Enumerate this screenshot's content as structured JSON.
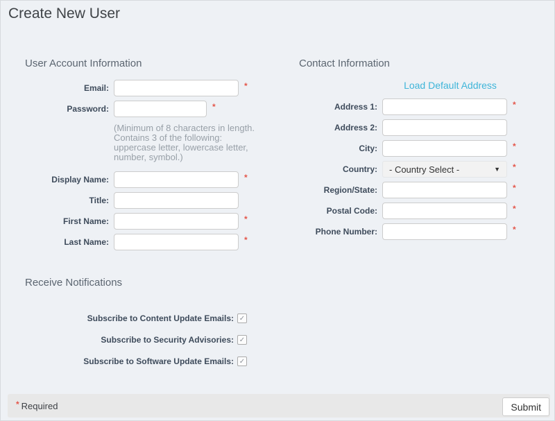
{
  "page": {
    "title": "Create New User"
  },
  "account": {
    "section_title": "User Account Information",
    "fields": [
      {
        "label": "Email:",
        "value": "",
        "required": true
      },
      {
        "label": "Password:",
        "value": "",
        "required": true,
        "hint": "(Minimum of 8 characters in length. Contains 3 of the following: uppercase letter, lowercase letter, number, symbol.)"
      },
      {
        "label": "Display Name:",
        "value": "",
        "required": true
      },
      {
        "label": "Title:",
        "value": "",
        "required": false
      },
      {
        "label": "First Name:",
        "value": "",
        "required": true
      },
      {
        "label": "Last Name:",
        "value": "",
        "required": true
      }
    ]
  },
  "contact": {
    "section_title": "Contact Information",
    "link_label": "Load Default Address",
    "fields": [
      {
        "label": "Address 1:",
        "value": "",
        "required": true
      },
      {
        "label": "Address 2:",
        "value": "",
        "required": false
      },
      {
        "label": "City:",
        "value": "",
        "required": true
      },
      {
        "label": "Country:",
        "value": "- Country Select -",
        "required": true,
        "type": "select"
      },
      {
        "label": "Region/State:",
        "value": "",
        "required": true
      },
      {
        "label": "Postal Code:",
        "value": "",
        "required": true
      },
      {
        "label": "Phone Number:",
        "value": "",
        "required": true
      }
    ]
  },
  "notifications": {
    "section_title": "Receive Notifications",
    "items": [
      {
        "label": "Subscribe to Content Update Emails:",
        "checked": true
      },
      {
        "label": "Subscribe to Security Advisories:",
        "checked": true
      },
      {
        "label": "Subscribe to Software Update Emails:",
        "checked": true
      }
    ]
  },
  "footer": {
    "required_marker": "*",
    "required_note": "Required",
    "submit_label": "Submit"
  },
  "icons": {
    "chevron_down": "▼",
    "check": "✓"
  },
  "colors": {
    "background": "#eef1f5",
    "accent_link": "#3eb5d9",
    "required_marker": "#e4564a",
    "label_text": "#3e4b5b",
    "footer_bar": "#e8e8e8"
  }
}
